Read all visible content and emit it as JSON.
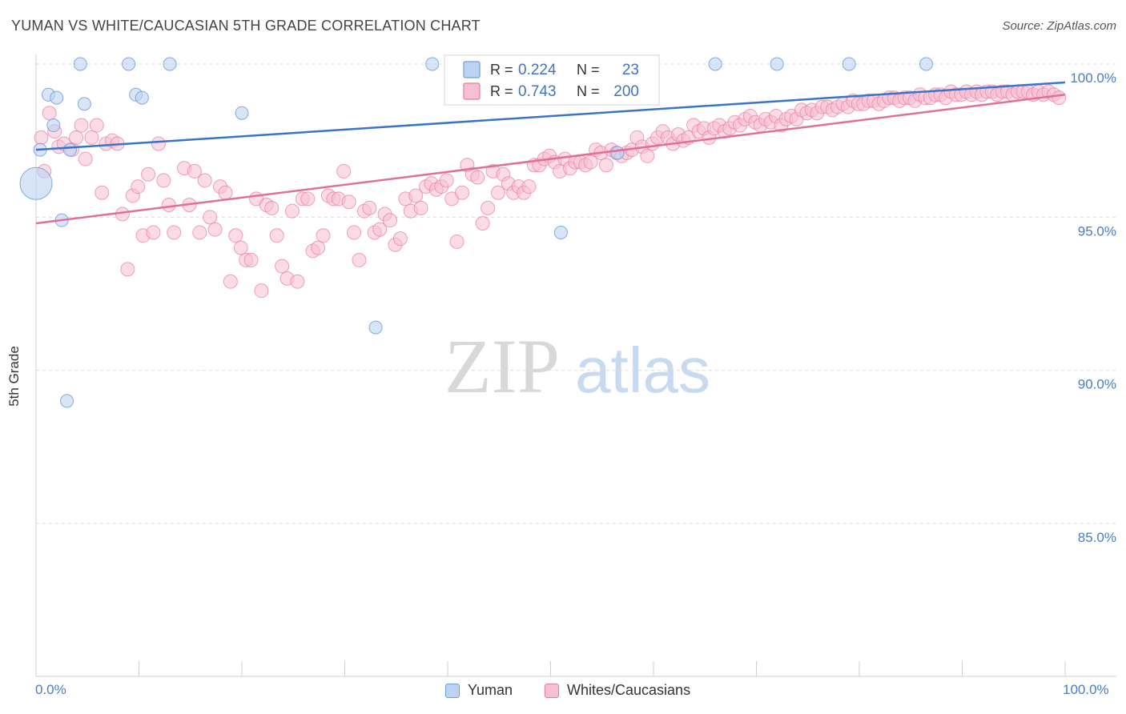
{
  "title": "YUMAN VS WHITE/CAUCASIAN 5TH GRADE CORRELATION CHART",
  "source": "Source: ZipAtlas.com",
  "watermark": {
    "zip": "ZIP",
    "atlas": "atlas"
  },
  "chart_data": {
    "type": "scatter",
    "xlabel": "",
    "ylabel": "5th Grade",
    "xlim": [
      0,
      100
    ],
    "ylim": [
      80.5,
      100.5
    ],
    "x_tick_labels": [
      "0.0%",
      "100.0%"
    ],
    "y_ticks": [
      100,
      95,
      90,
      85
    ],
    "y_tick_labels": [
      "100.0%",
      "95.0%",
      "90.0%",
      "85.0%"
    ],
    "grid": "horizontal dashed",
    "legend_position": "top-center",
    "series": [
      {
        "name": "Yuman",
        "color": "#6f9fdc",
        "fill": "#bcd3f2",
        "R": "0.224",
        "N": "23",
        "trend": {
          "x": [
            0,
            100
          ],
          "y": [
            97.2,
            99.4
          ]
        },
        "points": [
          [
            0,
            96.1
          ],
          [
            0.4,
            97.2
          ],
          [
            1.2,
            99.0
          ],
          [
            1.7,
            98.0
          ],
          [
            2.0,
            98.9
          ],
          [
            2.5,
            94.9
          ],
          [
            3.0,
            89.0
          ],
          [
            3.3,
            97.2
          ],
          [
            4.3,
            100.0
          ],
          [
            4.7,
            98.7
          ],
          [
            9.0,
            100.0
          ],
          [
            9.7,
            99.0
          ],
          [
            10.3,
            98.9
          ],
          [
            13.0,
            100.0
          ],
          [
            20.0,
            98.4
          ],
          [
            33.0,
            91.4
          ],
          [
            38.5,
            100.0
          ],
          [
            51.0,
            94.5
          ],
          [
            56.5,
            97.1
          ],
          [
            66.0,
            100.0
          ],
          [
            72.0,
            100.0
          ],
          [
            79.0,
            100.0
          ],
          [
            86.5,
            100.0
          ]
        ]
      },
      {
        "name": "Whites/Caucasians",
        "color": "#e87aa2",
        "fill": "#f7bfd2",
        "R": "0.743",
        "N": "200",
        "trend": {
          "x": [
            0,
            100
          ],
          "y": [
            94.8,
            99.0
          ]
        },
        "points": [
          [
            0.5,
            97.6
          ],
          [
            0.8,
            96.5
          ],
          [
            1.3,
            98.4
          ],
          [
            1.8,
            97.8
          ],
          [
            2.2,
            97.3
          ],
          [
            2.7,
            97.4
          ],
          [
            3.5,
            97.2
          ],
          [
            3.9,
            97.6
          ],
          [
            4.4,
            98.0
          ],
          [
            4.8,
            96.9
          ],
          [
            5.4,
            97.6
          ],
          [
            5.9,
            98.0
          ],
          [
            6.4,
            95.8
          ],
          [
            6.8,
            97.4
          ],
          [
            7.4,
            97.5
          ],
          [
            7.9,
            97.4
          ],
          [
            8.4,
            95.1
          ],
          [
            8.9,
            93.3
          ],
          [
            9.4,
            95.7
          ],
          [
            9.9,
            96.0
          ],
          [
            10.4,
            94.4
          ],
          [
            10.9,
            96.4
          ],
          [
            11.4,
            94.5
          ],
          [
            11.9,
            97.4
          ],
          [
            12.4,
            96.2
          ],
          [
            12.9,
            95.4
          ],
          [
            13.4,
            94.5
          ],
          [
            14.4,
            96.6
          ],
          [
            14.9,
            95.4
          ],
          [
            15.4,
            96.5
          ],
          [
            15.9,
            94.5
          ],
          [
            16.4,
            96.2
          ],
          [
            16.9,
            95.0
          ],
          [
            17.4,
            94.6
          ],
          [
            17.9,
            96.0
          ],
          [
            18.4,
            95.8
          ],
          [
            18.9,
            92.9
          ],
          [
            19.4,
            94.4
          ],
          [
            19.9,
            94.0
          ],
          [
            20.4,
            93.6
          ],
          [
            20.9,
            93.6
          ],
          [
            21.4,
            95.6
          ],
          [
            21.9,
            92.6
          ],
          [
            22.4,
            95.4
          ],
          [
            22.9,
            95.3
          ],
          [
            23.4,
            94.4
          ],
          [
            23.9,
            93.4
          ],
          [
            24.4,
            93.0
          ],
          [
            24.9,
            95.2
          ],
          [
            25.4,
            92.9
          ],
          [
            25.9,
            95.6
          ],
          [
            26.4,
            95.6
          ],
          [
            26.9,
            93.9
          ],
          [
            27.4,
            94.0
          ],
          [
            27.9,
            94.4
          ],
          [
            28.4,
            95.7
          ],
          [
            28.9,
            95.6
          ],
          [
            29.4,
            95.6
          ],
          [
            29.9,
            96.5
          ],
          [
            30.4,
            95.5
          ],
          [
            30.9,
            94.5
          ],
          [
            31.4,
            93.6
          ],
          [
            31.9,
            95.2
          ],
          [
            32.4,
            95.3
          ],
          [
            32.9,
            94.5
          ],
          [
            33.4,
            94.6
          ],
          [
            33.9,
            95.1
          ],
          [
            34.4,
            94.9
          ],
          [
            34.9,
            94.1
          ],
          [
            35.4,
            94.3
          ],
          [
            35.9,
            95.6
          ],
          [
            36.4,
            95.2
          ],
          [
            36.9,
            95.7
          ],
          [
            37.4,
            95.3
          ],
          [
            37.9,
            96.0
          ],
          [
            38.4,
            96.1
          ],
          [
            38.9,
            95.9
          ],
          [
            39.4,
            96.0
          ],
          [
            39.9,
            96.2
          ],
          [
            40.4,
            95.6
          ],
          [
            40.9,
            94.2
          ],
          [
            41.4,
            95.8
          ],
          [
            41.9,
            96.7
          ],
          [
            42.4,
            96.4
          ],
          [
            42.9,
            96.3
          ],
          [
            43.4,
            94.8
          ],
          [
            43.9,
            95.3
          ],
          [
            44.4,
            96.5
          ],
          [
            44.9,
            95.8
          ],
          [
            45.4,
            96.4
          ],
          [
            45.9,
            96.1
          ],
          [
            46.4,
            95.8
          ],
          [
            46.9,
            96.0
          ],
          [
            47.4,
            95.8
          ],
          [
            47.9,
            96.0
          ],
          [
            48.4,
            96.7
          ],
          [
            48.9,
            96.7
          ],
          [
            49.4,
            96.9
          ],
          [
            49.9,
            97.0
          ],
          [
            50.4,
            96.8
          ],
          [
            50.9,
            96.5
          ],
          [
            51.4,
            96.9
          ],
          [
            51.9,
            96.6
          ],
          [
            52.4,
            96.8
          ],
          [
            52.9,
            96.8
          ],
          [
            53.4,
            96.7
          ],
          [
            53.9,
            96.8
          ],
          [
            54.4,
            97.2
          ],
          [
            54.9,
            97.1
          ],
          [
            55.4,
            96.7
          ],
          [
            55.9,
            97.2
          ],
          [
            56.4,
            97.1
          ],
          [
            56.9,
            97.0
          ],
          [
            57.4,
            97.1
          ],
          [
            57.9,
            97.2
          ],
          [
            58.4,
            97.6
          ],
          [
            58.9,
            97.3
          ],
          [
            59.4,
            97.0
          ],
          [
            59.9,
            97.4
          ],
          [
            60.4,
            97.6
          ],
          [
            60.9,
            97.8
          ],
          [
            61.4,
            97.6
          ],
          [
            61.9,
            97.4
          ],
          [
            62.4,
            97.7
          ],
          [
            62.9,
            97.5
          ],
          [
            63.4,
            97.6
          ],
          [
            63.9,
            98.0
          ],
          [
            64.4,
            97.8
          ],
          [
            64.9,
            97.9
          ],
          [
            65.4,
            97.6
          ],
          [
            65.9,
            97.9
          ],
          [
            66.4,
            98.0
          ],
          [
            66.9,
            97.8
          ],
          [
            67.4,
            97.9
          ],
          [
            67.9,
            98.1
          ],
          [
            68.4,
            98.0
          ],
          [
            68.9,
            98.2
          ],
          [
            69.4,
            98.3
          ],
          [
            69.9,
            98.1
          ],
          [
            70.4,
            98.0
          ],
          [
            70.9,
            98.2
          ],
          [
            71.4,
            98.1
          ],
          [
            71.9,
            98.3
          ],
          [
            72.4,
            98.0
          ],
          [
            72.9,
            98.2
          ],
          [
            73.4,
            98.3
          ],
          [
            73.9,
            98.2
          ],
          [
            74.4,
            98.5
          ],
          [
            74.9,
            98.4
          ],
          [
            75.4,
            98.5
          ],
          [
            75.9,
            98.4
          ],
          [
            76.4,
            98.6
          ],
          [
            76.9,
            98.6
          ],
          [
            77.4,
            98.5
          ],
          [
            77.9,
            98.6
          ],
          [
            78.4,
            98.7
          ],
          [
            78.9,
            98.6
          ],
          [
            79.4,
            98.8
          ],
          [
            79.9,
            98.7
          ],
          [
            80.4,
            98.7
          ],
          [
            80.9,
            98.8
          ],
          [
            81.4,
            98.8
          ],
          [
            81.9,
            98.7
          ],
          [
            82.4,
            98.8
          ],
          [
            82.9,
            98.9
          ],
          [
            83.4,
            98.9
          ],
          [
            83.9,
            98.8
          ],
          [
            84.4,
            98.9
          ],
          [
            84.9,
            98.9
          ],
          [
            85.4,
            98.8
          ],
          [
            85.9,
            99.0
          ],
          [
            86.4,
            98.9
          ],
          [
            86.9,
            98.9
          ],
          [
            87.4,
            99.0
          ],
          [
            87.9,
            99.0
          ],
          [
            88.4,
            98.9
          ],
          [
            88.9,
            99.1
          ],
          [
            89.4,
            99.0
          ],
          [
            89.9,
            99.0
          ],
          [
            90.4,
            99.1
          ],
          [
            90.9,
            99.0
          ],
          [
            91.4,
            99.1
          ],
          [
            91.9,
            99.0
          ],
          [
            92.4,
            99.1
          ],
          [
            92.9,
            99.1
          ],
          [
            93.4,
            99.0
          ],
          [
            93.9,
            99.1
          ],
          [
            94.4,
            99.1
          ],
          [
            94.9,
            99.0
          ],
          [
            95.4,
            99.1
          ],
          [
            95.9,
            99.1
          ],
          [
            96.4,
            99.1
          ],
          [
            96.9,
            99.0
          ],
          [
            97.4,
            99.1
          ],
          [
            97.9,
            99.0
          ],
          [
            98.4,
            99.1
          ],
          [
            98.9,
            99.0
          ],
          [
            99.4,
            98.9
          ]
        ]
      }
    ],
    "legend": {
      "r_label": "R =",
      "n_label": "N ="
    }
  }
}
